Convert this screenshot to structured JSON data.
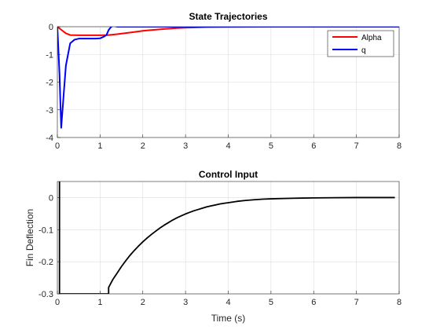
{
  "chart_data": [
    {
      "type": "line",
      "title": "State Trajectories",
      "xlabel": "",
      "ylabel": "",
      "xlim": [
        0,
        8
      ],
      "ylim": [
        -4,
        0
      ],
      "xticks": [
        "0",
        "1",
        "2",
        "3",
        "4",
        "5",
        "6",
        "7",
        "8"
      ],
      "yticks": [
        "0",
        "-1",
        "-2",
        "-3",
        "-4"
      ],
      "grid": true,
      "legend_position": "top-right",
      "series": [
        {
          "name": "Alpha",
          "color": "#ff0000",
          "x": [
            0,
            0.1,
            0.2,
            0.3,
            0.5,
            0.7,
            1.0,
            1.2,
            1.4,
            1.6,
            1.8,
            2.0,
            2.2,
            2.5,
            2.8,
            3.0,
            3.5,
            4.0,
            4.5,
            5.0,
            6.0,
            7.0,
            8.0
          ],
          "y": [
            0,
            -0.12,
            -0.24,
            -0.3,
            -0.31,
            -0.31,
            -0.31,
            -0.3,
            -0.27,
            -0.23,
            -0.19,
            -0.15,
            -0.12,
            -0.08,
            -0.05,
            -0.035,
            -0.015,
            -0.006,
            -0.002,
            0,
            0,
            0,
            0
          ]
        },
        {
          "name": "q",
          "color": "#0000ff",
          "x": [
            0,
            0.05,
            0.09,
            0.15,
            0.2,
            0.25,
            0.3,
            0.4,
            0.5,
            0.6,
            0.7,
            0.8,
            0.9,
            1.0,
            1.1,
            1.15,
            1.2,
            1.25,
            1.3,
            1.35,
            1.4,
            1.5,
            2.0,
            3.0,
            4.0,
            5.0,
            6.0,
            7.0,
            8.0
          ],
          "y": [
            0,
            -1.7,
            -3.65,
            -2.4,
            -1.4,
            -1.0,
            -0.6,
            -0.47,
            -0.43,
            -0.43,
            -0.43,
            -0.43,
            -0.43,
            -0.42,
            -0.35,
            -0.3,
            -0.12,
            -0.02,
            0.03,
            0.02,
            0,
            0,
            0,
            0,
            0,
            0,
            0,
            0,
            0
          ]
        }
      ]
    },
    {
      "type": "line",
      "title": "Control Input",
      "xlabel": "Time (s)",
      "ylabel": "Fin Deflection",
      "xlim": [
        0,
        8
      ],
      "ylim": [
        -0.3,
        0.05
      ],
      "xticks": [
        "0",
        "1",
        "2",
        "3",
        "4",
        "5",
        "6",
        "7",
        "8"
      ],
      "yticks": [
        "0",
        "-0.1",
        "-0.2",
        "-0.3"
      ],
      "grid": true,
      "series": [
        {
          "name": "",
          "color": "#000000",
          "x": [
            0,
            0.05,
            0.05,
            1.2,
            1.2,
            1.3,
            1.4,
            1.5,
            1.6,
            1.7,
            1.8,
            1.9,
            2.0,
            2.1,
            2.2,
            2.3,
            2.4,
            2.5,
            2.6,
            2.7,
            2.8,
            2.9,
            3.0,
            3.1,
            3.2,
            3.3,
            3.4,
            3.5,
            3.6,
            3.7,
            3.8,
            3.9,
            4.0,
            4.2,
            4.4,
            4.6,
            4.8,
            5.0,
            5.3,
            5.6,
            6.0,
            6.5,
            7.0,
            7.5,
            7.9
          ],
          "y": [
            0.07,
            0.07,
            -0.3,
            -0.3,
            -0.28,
            -0.255,
            -0.235,
            -0.215,
            -0.197,
            -0.18,
            -0.165,
            -0.151,
            -0.138,
            -0.126,
            -0.115,
            -0.105,
            -0.095,
            -0.086,
            -0.078,
            -0.07,
            -0.063,
            -0.057,
            -0.051,
            -0.046,
            -0.041,
            -0.037,
            -0.033,
            -0.029,
            -0.026,
            -0.023,
            -0.02,
            -0.018,
            -0.016,
            -0.012,
            -0.009,
            -0.007,
            -0.005,
            -0.004,
            -0.003,
            -0.002,
            -0.001,
            -0.0005,
            0,
            0,
            0
          ]
        }
      ]
    }
  ]
}
